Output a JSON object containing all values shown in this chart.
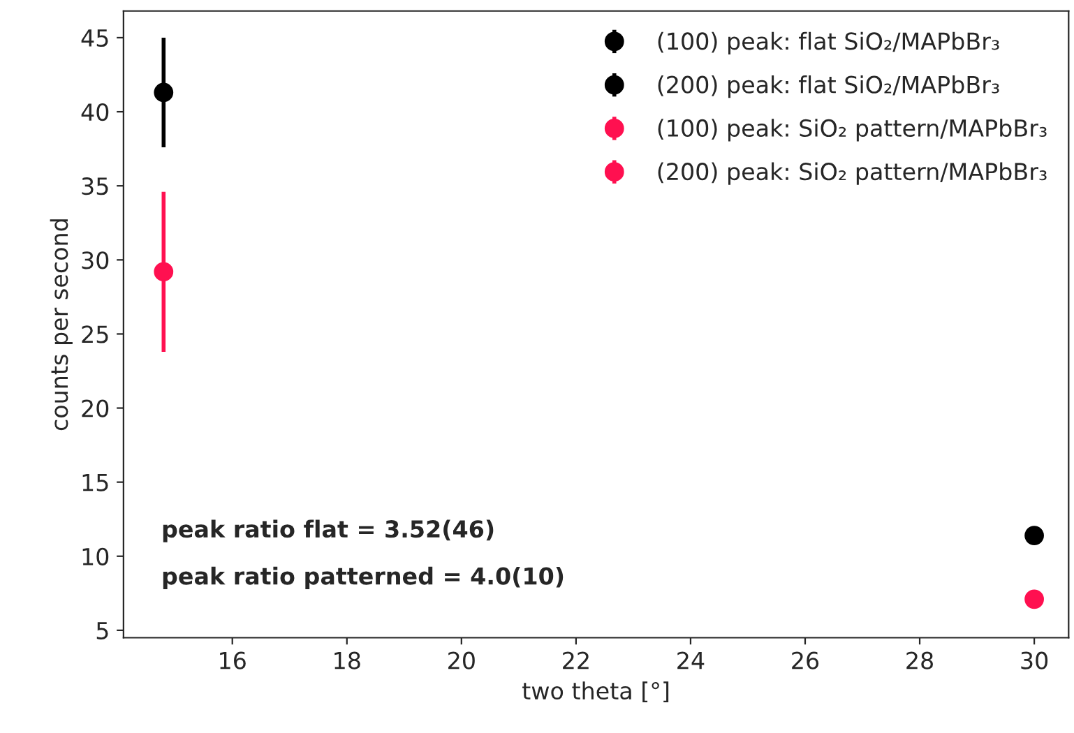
{
  "chart_data": {
    "type": "scatter",
    "xlabel": "two theta [°]",
    "ylabel": "counts per second",
    "xlim": [
      14.1,
      30.6
    ],
    "ylim": [
      4.5,
      46.8
    ],
    "xticks": [
      16,
      18,
      20,
      22,
      24,
      26,
      28,
      30
    ],
    "yticks": [
      5,
      10,
      15,
      20,
      25,
      30,
      35,
      40,
      45
    ],
    "x": [
      14.8,
      30.0
    ],
    "series": [
      {
        "name": "(100) peak: flat SiO₂/MAPbBr₃",
        "color": "#000000",
        "values": [
          41.3,
          null
        ],
        "errors": [
          3.7,
          null
        ]
      },
      {
        "name": "(200) peak: flat SiO₂/MAPbBr₃",
        "color": "#000000",
        "values": [
          null,
          11.4
        ],
        "errors": [
          null,
          0.4
        ]
      },
      {
        "name": "(100) peak: SiO₂ pattern/MAPbBr₃",
        "color": "#ff1050",
        "values": [
          29.2,
          null
        ],
        "errors": [
          5.4,
          null
        ]
      },
      {
        "name": "(200) peak: SiO₂ pattern/MAPbBr₃",
        "color": "#ff1050",
        "values": [
          null,
          7.1
        ],
        "errors": [
          null,
          0.6
        ]
      }
    ],
    "marker": "circle",
    "legend": "top right",
    "grid": false,
    "annotations": [
      "peak ratio flat = 3.52(46)",
      "peak ratio patterned = 4.0(10)"
    ]
  }
}
